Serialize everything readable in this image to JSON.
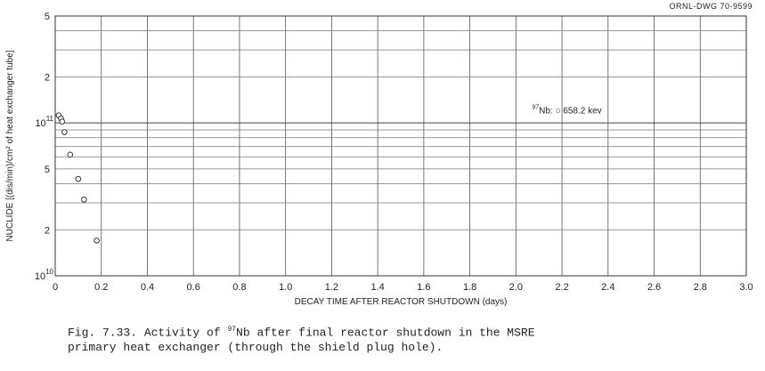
{
  "drawing_number": "ORNL-DWG 70-9599",
  "caption": {
    "prefix": "Fig. 7.33.  Activity of ",
    "isotope_mass": "97",
    "isotope_symbol": "Nb",
    "rest_line1": " after final reactor shutdown in the MSRE",
    "line2": "primary heat exchanger (through the shield plug hole)."
  },
  "chart_data": {
    "type": "scatter",
    "title": "",
    "xlabel": "DECAY TIME AFTER REACTOR SHUTDOWN  (days)",
    "ylabel": "NUCLIDE [(dis/min)/cm² of heat exchanger tube]",
    "xlim": [
      0,
      3.0
    ],
    "ylim": [
      10000000000.0,
      500000000000.0
    ],
    "yscale": "log",
    "grid": true,
    "x_ticks": [
      "0",
      "0.2",
      "0.4",
      "0.6",
      "0.8",
      "1.0",
      "1.2",
      "1.4",
      "1.6",
      "1.8",
      "2.0",
      "2.2",
      "2.4",
      "2.6",
      "2.8",
      "3.0"
    ],
    "y_ticks": [
      {
        "value": 10000000000.0,
        "mantissa": "10",
        "exponent": "10"
      },
      {
        "value": 20000000000.0,
        "mantissa": "2",
        "exponent": ""
      },
      {
        "value": 50000000000.0,
        "mantissa": "5",
        "exponent": ""
      },
      {
        "value": 100000000000.0,
        "mantissa": "10",
        "exponent": "11"
      },
      {
        "value": 200000000000.0,
        "mantissa": "2",
        "exponent": ""
      },
      {
        "value": 500000000000.0,
        "mantissa": "5",
        "exponent": ""
      }
    ],
    "series": [
      {
        "marker": "open-circle",
        "x": [
          0.015,
          0.025,
          0.03,
          0.04,
          0.065,
          0.1,
          0.125,
          0.18
        ],
        "y": [
          112000000000.0,
          107000000000.0,
          102000000000.0,
          87000000000.0,
          62000000000.0,
          43000000000.0,
          31500000000.0,
          17000000000.0
        ]
      }
    ],
    "annotations": [
      {
        "mass": "97",
        "text": "Nb: ○ 658.2 kev",
        "x": 2.0,
        "y": 112000000000.0
      }
    ]
  }
}
